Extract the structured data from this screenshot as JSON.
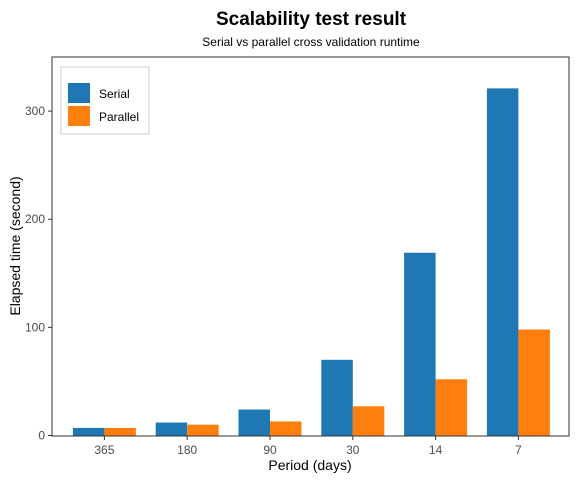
{
  "chart_data": {
    "type": "bar",
    "title": "Scalability test result",
    "subtitle": "Serial vs parallel cross validation runtime",
    "xlabel": "Period (days)",
    "ylabel": "Elapsed time (second)",
    "categories": [
      "365",
      "180",
      "90",
      "30",
      "14",
      "7"
    ],
    "series": [
      {
        "name": "Serial",
        "color": "#1f77b4",
        "values": [
          7,
          12,
          24,
          70,
          169,
          321
        ]
      },
      {
        "name": "Parallel",
        "color": "#ff7f0e",
        "values": [
          7,
          10,
          13,
          27,
          52,
          98
        ]
      }
    ],
    "ylim": [
      0,
      350
    ],
    "yticks": [
      0,
      100,
      200,
      300
    ],
    "grid": false,
    "legend_position": "top-left"
  }
}
